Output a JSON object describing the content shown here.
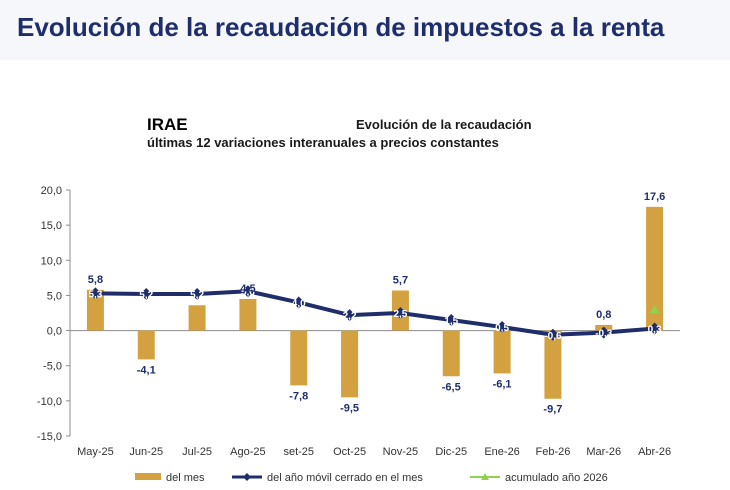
{
  "page": {
    "title": "Evolución de la recaudación de impuestos a la renta"
  },
  "chart_data": {
    "type": "bar",
    "series_name": "IRAE",
    "title": "Evolución de la recaudación",
    "subtitle": "últimas 12 variaciones interanuales a precios constantes",
    "categories": [
      "May-25",
      "Jun-25",
      "Jul-25",
      "Ago-25",
      "set-25",
      "Oct-25",
      "Nov-25",
      "Dic-25",
      "Ene-26",
      "Feb-26",
      "Mar-26",
      "Abr-26"
    ],
    "series": [
      {
        "name": "del mes",
        "kind": "bar",
        "color": "#d4a140",
        "values": [
          5.8,
          -4.1,
          3.6,
          4.5,
          -7.8,
          -9.5,
          5.7,
          -6.5,
          -6.1,
          -9.7,
          0.8,
          17.6
        ],
        "labels": [
          "5,8",
          "-4,1",
          "",
          "4,5",
          "-7,8",
          "-9,5",
          "5,7",
          "-6,5",
          "-6,1",
          "-9,7",
          "0,8",
          "17,6"
        ]
      },
      {
        "name": "del año móvil cerrado en el mes",
        "kind": "line",
        "color": "#1f2e6b",
        "values": [
          5.3,
          5.2,
          5.2,
          5.6,
          4.0,
          2.2,
          2.5,
          1.5,
          0.5,
          -0.6,
          -0.3,
          0.3
        ],
        "labels": [
          "5,3",
          "5,2",
          "5,2",
          "5,6",
          "4,0",
          "2,2",
          "2,5",
          "1,5",
          "0,5",
          "-0,6",
          "-0,3",
          "0,3"
        ]
      },
      {
        "name": "acumulado año 2026",
        "kind": "marker",
        "color": "#92d050",
        "values": [
          null,
          null,
          null,
          null,
          null,
          null,
          null,
          null,
          null,
          null,
          null,
          3.0
        ]
      }
    ],
    "y_ticks": [
      "20,0",
      "15,0",
      "10,0",
      "5,0",
      "0,0",
      "-5,0",
      "-10,0",
      "-15,0"
    ],
    "ylim": [
      -15,
      20
    ],
    "y_step": 5,
    "grid": false,
    "legend_position": "bottom"
  }
}
